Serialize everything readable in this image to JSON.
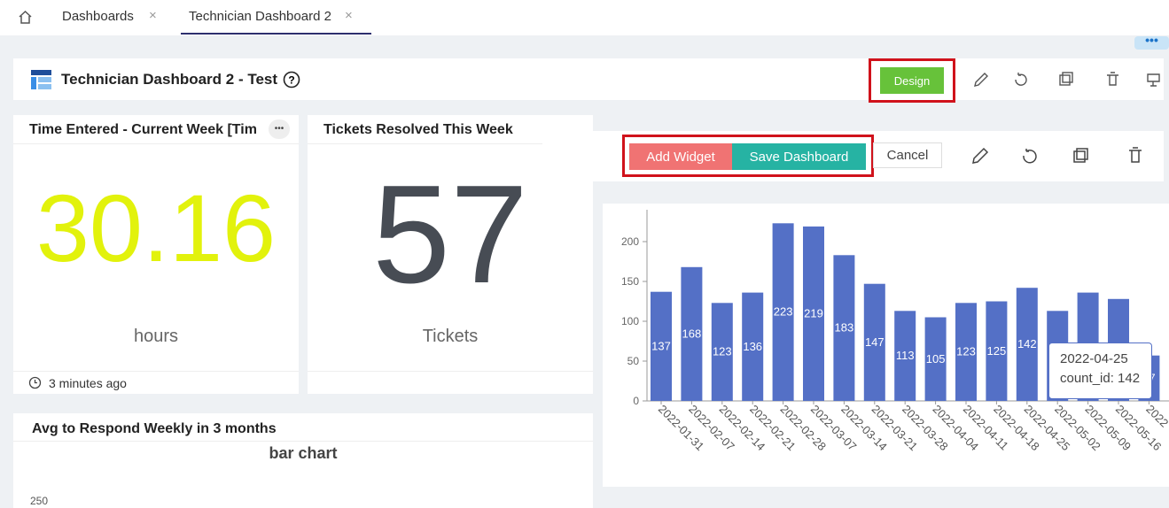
{
  "tabs": [
    "Dashboards",
    "Technician Dashboard 2"
  ],
  "header": {
    "title": "Technician Dashboard 2 - Test",
    "design_button": "Design"
  },
  "toolbar": {
    "add_widget": "Add Widget",
    "save_dashboard": "Save Dashboard",
    "cancel": "Cancel"
  },
  "widgets": [
    {
      "title": "Time Entered - Current Week [Tim",
      "value": 30.16,
      "unit": "hours",
      "footer": "3 minutes ago"
    },
    {
      "title": "Tickets Resolved This Week",
      "value": 57,
      "unit": "Tickets"
    },
    {
      "title": "Avg to Respond Weekly in 3 months",
      "chart_title": "bar chart",
      "first_tick": "250"
    }
  ],
  "chart_data": {
    "type": "bar",
    "categories": [
      "2022-01-31",
      "2022-02-07",
      "2022-02-14",
      "2022-02-21",
      "2022-02-28",
      "2022-03-07",
      "2022-03-14",
      "2022-03-21",
      "2022-03-28",
      "2022-04-04",
      "2022-04-11",
      "2022-04-18",
      "2022-04-25",
      "2022-05-02",
      "2022-05-09",
      "2022-05-16",
      "2022"
    ],
    "values": [
      137,
      168,
      123,
      136,
      223,
      219,
      183,
      147,
      113,
      105,
      123,
      125,
      142,
      113,
      136,
      128,
      57
    ],
    "color": "#5470c6",
    "ylim": [
      0,
      240
    ],
    "yticks": [
      0,
      50,
      100,
      150,
      200
    ],
    "tooltip": {
      "title": "2022-04-25",
      "text": "count_id: 142"
    }
  }
}
